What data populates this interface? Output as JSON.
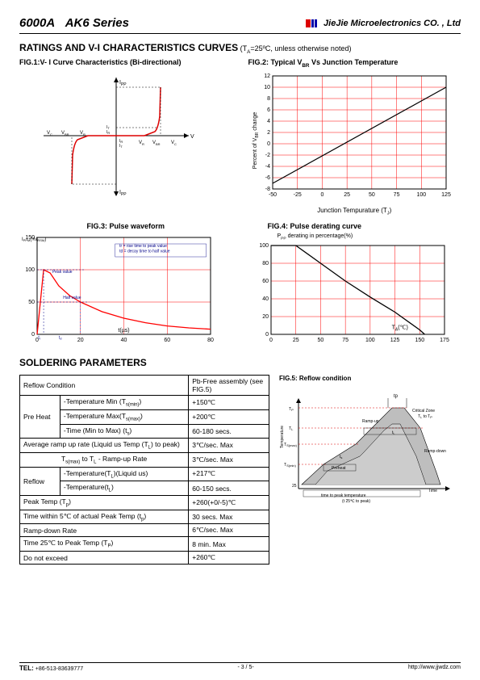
{
  "header": {
    "product": "6000A",
    "series": "AK6 Series",
    "company": "JieJie Microelectronics CO. , Ltd"
  },
  "section1": {
    "title": "RATINGS AND V-I CHARACTERISTICS CURVES",
    "condition": " (T",
    "condition_sub": "A",
    "condition_end": "=25ºC, unless otherwise noted)"
  },
  "fig1": {
    "title": "FIG.1:V- I Curve Characteristics (Bi-directional)",
    "labels": {
      "ipp": "I",
      "pp": "PP",
      "vc": "V",
      "c": "C",
      "vbr": "V",
      "br": "BR",
      "vr": "V",
      "r": "R",
      "v": "V",
      "ir": "I",
      "rr": "R",
      "it": "I",
      "tt": "T"
    }
  },
  "fig2": {
    "title": "FIG.2: Typical V",
    "title_sub": "BR",
    "title_end": " Vs Junction Temperature",
    "ylabel": "Percent of V",
    "ylabel_sub": "BR",
    "ylabel_end": " change",
    "xlabel": "Junction Tempurature (T",
    "xlabel_sub": "J",
    "xlabel_end": ")",
    "xticks": [
      "-50",
      "-25",
      "0",
      "25",
      "50",
      "75",
      "100",
      "125"
    ],
    "yticks": [
      "-8",
      "-6",
      "-4",
      "-2",
      "0",
      "2",
      "4",
      "6",
      "8",
      "10",
      "12"
    ],
    "xlim": [
      -50,
      125
    ],
    "ylim": [
      -8,
      12
    ],
    "line_points": [
      [
        -50,
        -7
      ],
      [
        125,
        10
      ]
    ],
    "grid_color": "#ff0000",
    "line_color": "#000000",
    "line_width": 1.2
  },
  "fig3": {
    "title": "FIG.3: Pulse waveform",
    "ylabel": "I",
    "ylabel_sub": "PPM",
    "ylabel_end": "(%I",
    "ylabel_sub2": "RSM",
    "ylabel_end2": ")",
    "xlabel": "t(µs)",
    "xticks": [
      "0",
      "20",
      "40",
      "60",
      "80"
    ],
    "yticks": [
      "0",
      "50",
      "100",
      "150"
    ],
    "xlim": [
      0,
      80
    ],
    "ylim": [
      0,
      150
    ],
    "annotations": {
      "rise": "tr = rise time to peak value",
      "decay": "td = decay time to half value",
      "peak": "Peak value",
      "half": "Half value",
      "t": "t",
      "r": "r",
      "d": "d"
    },
    "curve_points": [
      [
        0,
        0
      ],
      [
        3,
        100
      ],
      [
        6,
        95
      ],
      [
        10,
        75
      ],
      [
        15,
        60
      ],
      [
        20,
        50
      ],
      [
        30,
        35
      ],
      [
        40,
        25
      ],
      [
        50,
        18
      ],
      [
        60,
        13
      ],
      [
        70,
        10
      ],
      [
        80,
        8
      ]
    ],
    "grid_color": "#ff0000",
    "line_color": "#ff0000",
    "line_width": 1.3
  },
  "fig4": {
    "title": "FIG.4: Pulse derating curve",
    "ylabel": "P",
    "ylabel_sub": "PP",
    "ylabel_end": " derating in percentage(%)",
    "xlabel": "T",
    "xlabel_sub": "A",
    "xlabel_end": "(℃)",
    "xticks": [
      "0",
      "25",
      "50",
      "75",
      "100",
      "125",
      "150",
      "175"
    ],
    "yticks": [
      "0",
      "20",
      "40",
      "60",
      "80",
      "100"
    ],
    "xlim": [
      0,
      175
    ],
    "ylim": [
      0,
      100
    ],
    "curve_points": [
      [
        0,
        100
      ],
      [
        25,
        100
      ],
      [
        50,
        80
      ],
      [
        75,
        60
      ],
      [
        100,
        42
      ],
      [
        125,
        25
      ],
      [
        150,
        5
      ],
      [
        155,
        0
      ]
    ],
    "grid_color": "#ff0000",
    "line_color": "#000000",
    "line_width": 1.3
  },
  "soldering": {
    "title": "SOLDERING PARAMETERS",
    "header_left": "Reflow Condition",
    "header_right": "Pb-Free assembly (see FIG.5)",
    "rows": [
      {
        "g": "Pre Heat",
        "p": "-Temperature Min (T",
        "sub": "s(min)",
        "pe": ")",
        "v": "+150℃"
      },
      {
        "g": "",
        "p": "-Temperature Max(T",
        "sub": "s(max)",
        "pe": ")",
        "v": "+200℃"
      },
      {
        "g": "",
        "p": "-Time (Min to Max) (t",
        "sub": "s",
        "pe": ")",
        "v": "60-180 secs."
      },
      {
        "g": "span",
        "p": "Average ramp up rate (Liquid us Temp (T",
        "sub": "L",
        "pe": ") to peak)",
        "v": "3℃/sec. Max"
      },
      {
        "g": "span",
        "p": "T",
        "sub": "s(max)",
        "pe": " to T",
        "sub2": "L",
        "pe2": " - Ramp-up Rate",
        "v": "3℃/sec. Max"
      },
      {
        "g": "Reflow",
        "p": "-Temperature(T",
        "sub": "L",
        "pe": ")(Liquid us)",
        "v": "+217℃"
      },
      {
        "g": "",
        "p": "-Temperature(t",
        "sub": "L",
        "pe": ")",
        "v": "60-150 secs."
      },
      {
        "g": "span",
        "p": "Peak Temp (T",
        "sub": "p",
        "pe": ")",
        "v": "+260(+0/-5)℃"
      },
      {
        "g": "span",
        "p": "Time within 5℃ of actual Peak Temp (t",
        "sub": "p",
        "pe": ")",
        "v": "30 secs. Max"
      },
      {
        "g": "span",
        "p": "Ramp-down Rate",
        "sub": "",
        "pe": "",
        "v": "6℃/sec. Max"
      },
      {
        "g": "span",
        "p": "Time 25℃ to Peak Temp (T",
        "sub": "P",
        "pe": ")",
        "v": "8 min. Max"
      },
      {
        "g": "span",
        "p": "Do not exceed",
        "sub": "",
        "pe": "",
        "v": "+260℃"
      }
    ]
  },
  "fig5": {
    "title": "FIG.5: Reflow condition",
    "labels": {
      "tp": "tp",
      "tsmax": "T",
      "smax": "S(max)",
      "tsmin": "T",
      "smin": "S(min)",
      "tl": "T",
      "l": "L",
      "ts": "t",
      "s": "s",
      "tl2": "t",
      "l2": "L",
      "preheat": "Preheat",
      "rampup": "Ramp-up",
      "rampdown": "Ramp-down",
      "critical": "Critical Zone T",
      "crit2": "L",
      "crit3": " to T",
      "crit4": "P",
      "time": "Time",
      "t25p": "(t 25℃ to peak)",
      "timetopeak": "time to peak temperature",
      "temp": "Temperature",
      "c25": "25"
    }
  },
  "footer": {
    "tel_label": "TEL:",
    "tel": " +86-513-83639777",
    "page": "- 3 / 5-",
    "url": "http://www.jjwdz.com"
  }
}
